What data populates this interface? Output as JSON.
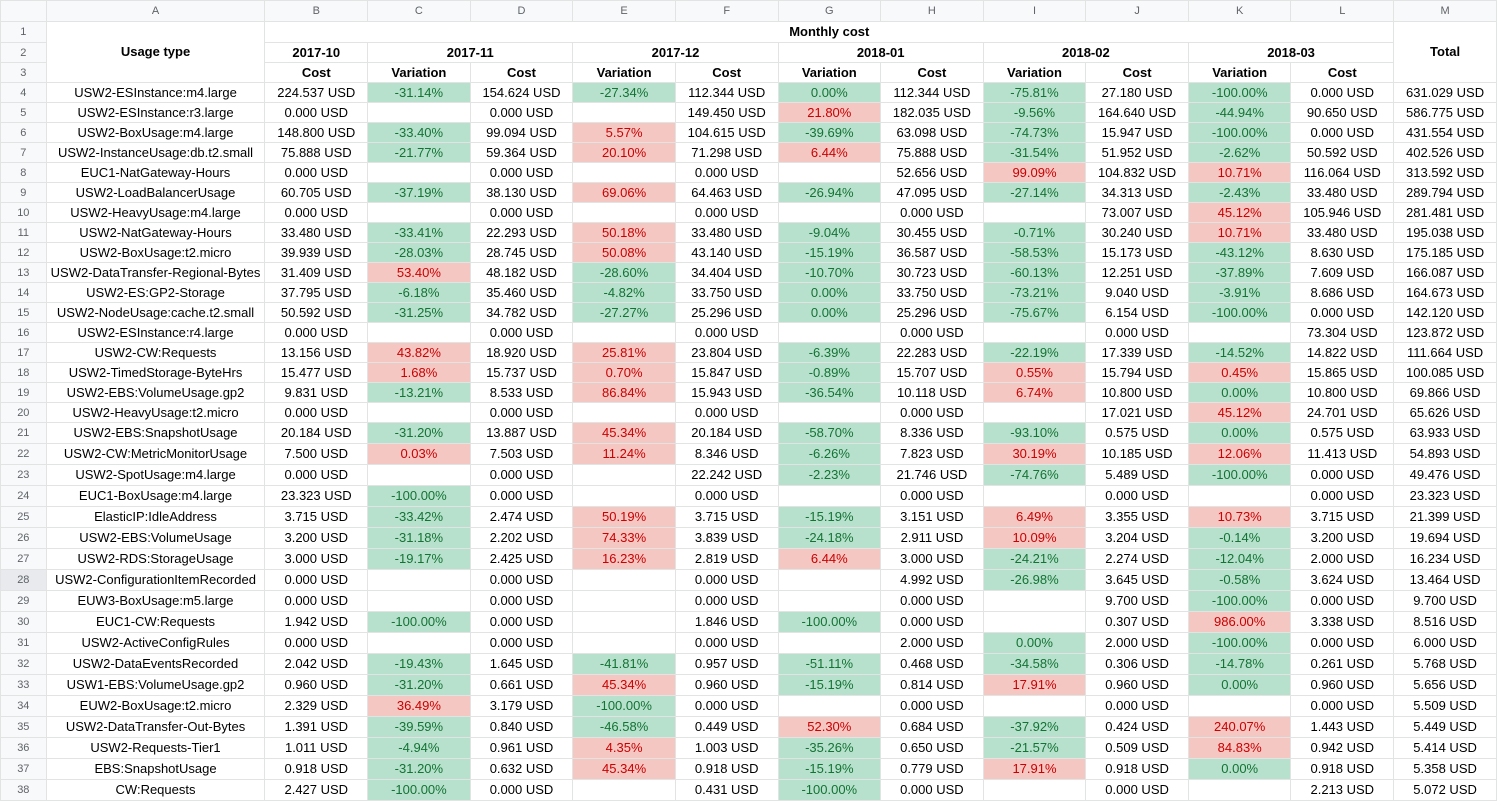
{
  "columns": [
    "A",
    "B",
    "C",
    "D",
    "E",
    "F",
    "G",
    "H",
    "I",
    "J",
    "K",
    "L",
    "M"
  ],
  "header": {
    "monthly_cost": "Monthly cost",
    "usage_type": "Usage type",
    "total": "Total",
    "months": [
      "2017-10",
      "2017-11",
      "2017-12",
      "2018-01",
      "2018-02",
      "2018-03"
    ],
    "cost": "Cost",
    "variation": "Variation"
  },
  "rows": [
    [
      "USW2-ESInstance:m4.large",
      "224.537 USD",
      "-31.14%",
      "154.624 USD",
      "-27.34%",
      "112.344 USD",
      "0.00%",
      "112.344 USD",
      "-75.81%",
      "27.180 USD",
      "-100.00%",
      "0.000 USD",
      "631.029 USD"
    ],
    [
      "USW2-ESInstance:r3.large",
      "0.000 USD",
      "",
      "0.000 USD",
      "",
      "149.450 USD",
      "21.80%",
      "182.035 USD",
      "-9.56%",
      "164.640 USD",
      "-44.94%",
      "90.650 USD",
      "586.775 USD"
    ],
    [
      "USW2-BoxUsage:m4.large",
      "148.800 USD",
      "-33.40%",
      "99.094 USD",
      "5.57%",
      "104.615 USD",
      "-39.69%",
      "63.098 USD",
      "-74.73%",
      "15.947 USD",
      "-100.00%",
      "0.000 USD",
      "431.554 USD"
    ],
    [
      "USW2-InstanceUsage:db.t2.small",
      "75.888 USD",
      "-21.77%",
      "59.364 USD",
      "20.10%",
      "71.298 USD",
      "6.44%",
      "75.888 USD",
      "-31.54%",
      "51.952 USD",
      "-2.62%",
      "50.592 USD",
      "402.526 USD"
    ],
    [
      "EUC1-NatGateway-Hours",
      "0.000 USD",
      "",
      "0.000 USD",
      "",
      "0.000 USD",
      "",
      "52.656 USD",
      "99.09%",
      "104.832 USD",
      "10.71%",
      "116.064 USD",
      "313.592 USD"
    ],
    [
      "USW2-LoadBalancerUsage",
      "60.705 USD",
      "-37.19%",
      "38.130 USD",
      "69.06%",
      "64.463 USD",
      "-26.94%",
      "47.095 USD",
      "-27.14%",
      "34.313 USD",
      "-2.43%",
      "33.480 USD",
      "289.794 USD"
    ],
    [
      "USW2-HeavyUsage:m4.large",
      "0.000 USD",
      "",
      "0.000 USD",
      "",
      "0.000 USD",
      "",
      "0.000 USD",
      "",
      "73.007 USD",
      "45.12%",
      "105.946 USD",
      "281.481 USD"
    ],
    [
      "USW2-NatGateway-Hours",
      "33.480 USD",
      "-33.41%",
      "22.293 USD",
      "50.18%",
      "33.480 USD",
      "-9.04%",
      "30.455 USD",
      "-0.71%",
      "30.240 USD",
      "10.71%",
      "33.480 USD",
      "195.038 USD"
    ],
    [
      "USW2-BoxUsage:t2.micro",
      "39.939 USD",
      "-28.03%",
      "28.745 USD",
      "50.08%",
      "43.140 USD",
      "-15.19%",
      "36.587 USD",
      "-58.53%",
      "15.173 USD",
      "-43.12%",
      "8.630 USD",
      "175.185 USD"
    ],
    [
      "USW2-DataTransfer-Regional-Bytes",
      "31.409 USD",
      "53.40%",
      "48.182 USD",
      "-28.60%",
      "34.404 USD",
      "-10.70%",
      "30.723 USD",
      "-60.13%",
      "12.251 USD",
      "-37.89%",
      "7.609 USD",
      "166.087 USD"
    ],
    [
      "USW2-ES:GP2-Storage",
      "37.795 USD",
      "-6.18%",
      "35.460 USD",
      "-4.82%",
      "33.750 USD",
      "0.00%",
      "33.750 USD",
      "-73.21%",
      "9.040 USD",
      "-3.91%",
      "8.686 USD",
      "164.673 USD"
    ],
    [
      "USW2-NodeUsage:cache.t2.small",
      "50.592 USD",
      "-31.25%",
      "34.782 USD",
      "-27.27%",
      "25.296 USD",
      "0.00%",
      "25.296 USD",
      "-75.67%",
      "6.154 USD",
      "-100.00%",
      "0.000 USD",
      "142.120 USD"
    ],
    [
      "USW2-ESInstance:r4.large",
      "0.000 USD",
      "",
      "0.000 USD",
      "",
      "0.000 USD",
      "",
      "0.000 USD",
      "",
      "0.000 USD",
      "",
      "73.304 USD",
      "123.872 USD"
    ],
    [
      "USW2-CW:Requests",
      "13.156 USD",
      "43.82%",
      "18.920 USD",
      "25.81%",
      "23.804 USD",
      "-6.39%",
      "22.283 USD",
      "-22.19%",
      "17.339 USD",
      "-14.52%",
      "14.822 USD",
      "111.664 USD"
    ],
    [
      "USW2-TimedStorage-ByteHrs",
      "15.477 USD",
      "1.68%",
      "15.737 USD",
      "0.70%",
      "15.847 USD",
      "-0.89%",
      "15.707 USD",
      "0.55%",
      "15.794 USD",
      "0.45%",
      "15.865 USD",
      "100.085 USD"
    ],
    [
      "USW2-EBS:VolumeUsage.gp2",
      "9.831 USD",
      "-13.21%",
      "8.533 USD",
      "86.84%",
      "15.943 USD",
      "-36.54%",
      "10.118 USD",
      "6.74%",
      "10.800 USD",
      "0.00%",
      "10.800 USD",
      "69.866 USD"
    ],
    [
      "USW2-HeavyUsage:t2.micro",
      "0.000 USD",
      "",
      "0.000 USD",
      "",
      "0.000 USD",
      "",
      "0.000 USD",
      "",
      "17.021 USD",
      "45.12%",
      "24.701 USD",
      "65.626 USD"
    ],
    [
      "USW2-EBS:SnapshotUsage",
      "20.184 USD",
      "-31.20%",
      "13.887 USD",
      "45.34%",
      "20.184 USD",
      "-58.70%",
      "8.336 USD",
      "-93.10%",
      "0.575 USD",
      "0.00%",
      "0.575 USD",
      "63.933 USD"
    ],
    [
      "USW2-CW:MetricMonitorUsage",
      "7.500 USD",
      "0.03%",
      "7.503 USD",
      "11.24%",
      "8.346 USD",
      "-6.26%",
      "7.823 USD",
      "30.19%",
      "10.185 USD",
      "12.06%",
      "11.413 USD",
      "54.893 USD"
    ],
    [
      "USW2-SpotUsage:m4.large",
      "0.000 USD",
      "",
      "0.000 USD",
      "",
      "22.242 USD",
      "-2.23%",
      "21.746 USD",
      "-74.76%",
      "5.489 USD",
      "-100.00%",
      "0.000 USD",
      "49.476 USD"
    ],
    [
      "EUC1-BoxUsage:m4.large",
      "23.323 USD",
      "-100.00%",
      "0.000 USD",
      "",
      "0.000 USD",
      "",
      "0.000 USD",
      "",
      "0.000 USD",
      "",
      "0.000 USD",
      "23.323 USD"
    ],
    [
      "ElasticIP:IdleAddress",
      "3.715 USD",
      "-33.42%",
      "2.474 USD",
      "50.19%",
      "3.715 USD",
      "-15.19%",
      "3.151 USD",
      "6.49%",
      "3.355 USD",
      "10.73%",
      "3.715 USD",
      "21.399 USD"
    ],
    [
      "USW2-EBS:VolumeUsage",
      "3.200 USD",
      "-31.18%",
      "2.202 USD",
      "74.33%",
      "3.839 USD",
      "-24.18%",
      "2.911 USD",
      "10.09%",
      "3.204 USD",
      "-0.14%",
      "3.200 USD",
      "19.694 USD"
    ],
    [
      "USW2-RDS:StorageUsage",
      "3.000 USD",
      "-19.17%",
      "2.425 USD",
      "16.23%",
      "2.819 USD",
      "6.44%",
      "3.000 USD",
      "-24.21%",
      "2.274 USD",
      "-12.04%",
      "2.000 USD",
      "16.234 USD"
    ],
    [
      "USW2-ConfigurationItemRecorded",
      "0.000 USD",
      "",
      "0.000 USD",
      "",
      "0.000 USD",
      "",
      "4.992 USD",
      "-26.98%",
      "3.645 USD",
      "-0.58%",
      "3.624 USD",
      "13.464 USD"
    ],
    [
      "EUW3-BoxUsage:m5.large",
      "0.000 USD",
      "",
      "0.000 USD",
      "",
      "0.000 USD",
      "",
      "0.000 USD",
      "",
      "9.700 USD",
      "-100.00%",
      "0.000 USD",
      "9.700 USD"
    ],
    [
      "EUC1-CW:Requests",
      "1.942 USD",
      "-100.00%",
      "0.000 USD",
      "",
      "1.846 USD",
      "-100.00%",
      "0.000 USD",
      "",
      "0.307 USD",
      "986.00%",
      "3.338 USD",
      "8.516 USD"
    ],
    [
      "USW2-ActiveConfigRules",
      "0.000 USD",
      "",
      "0.000 USD",
      "",
      "0.000 USD",
      "",
      "2.000 USD",
      "0.00%",
      "2.000 USD",
      "-100.00%",
      "0.000 USD",
      "6.000 USD"
    ],
    [
      "USW2-DataEventsRecorded",
      "2.042 USD",
      "-19.43%",
      "1.645 USD",
      "-41.81%",
      "0.957 USD",
      "-51.11%",
      "0.468 USD",
      "-34.58%",
      "0.306 USD",
      "-14.78%",
      "0.261 USD",
      "5.768 USD"
    ],
    [
      "USW1-EBS:VolumeUsage.gp2",
      "0.960 USD",
      "-31.20%",
      "0.661 USD",
      "45.34%",
      "0.960 USD",
      "-15.19%",
      "0.814 USD",
      "17.91%",
      "0.960 USD",
      "0.00%",
      "0.960 USD",
      "5.656 USD"
    ],
    [
      "EUW2-BoxUsage:t2.micro",
      "2.329 USD",
      "36.49%",
      "3.179 USD",
      "-100.00%",
      "0.000 USD",
      "",
      "0.000 USD",
      "",
      "0.000 USD",
      "",
      "0.000 USD",
      "5.509 USD"
    ],
    [
      "USW2-DataTransfer-Out-Bytes",
      "1.391 USD",
      "-39.59%",
      "0.840 USD",
      "-46.58%",
      "0.449 USD",
      "52.30%",
      "0.684 USD",
      "-37.92%",
      "0.424 USD",
      "240.07%",
      "1.443 USD",
      "5.449 USD"
    ],
    [
      "USW2-Requests-Tier1",
      "1.011 USD",
      "-4.94%",
      "0.961 USD",
      "4.35%",
      "1.003 USD",
      "-35.26%",
      "0.650 USD",
      "-21.57%",
      "0.509 USD",
      "84.83%",
      "0.942 USD",
      "5.414 USD"
    ],
    [
      "EBS:SnapshotUsage",
      "0.918 USD",
      "-31.20%",
      "0.632 USD",
      "45.34%",
      "0.918 USD",
      "-15.19%",
      "0.779 USD",
      "17.91%",
      "0.918 USD",
      "0.00%",
      "0.918 USD",
      "5.358 USD"
    ],
    [
      "CW:Requests",
      "2.427 USD",
      "-100.00%",
      "0.000 USD",
      "",
      "0.431 USD",
      "-100.00%",
      "0.000 USD",
      "",
      "0.000 USD",
      "",
      "2.213 USD",
      "5.072 USD"
    ]
  ],
  "colors": {
    "positive_bg": "#f4c7c3",
    "positive_text": "#cc0000",
    "negative_bg": "#b7e1cd",
    "negative_text": "#137333"
  }
}
